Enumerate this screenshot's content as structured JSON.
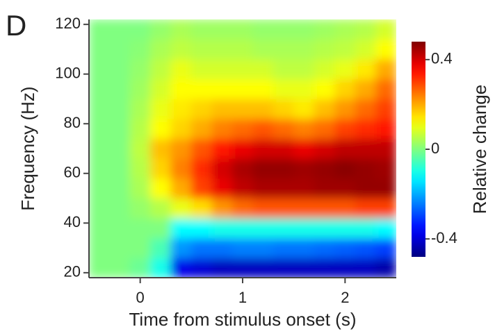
{
  "chart_data": {
    "type": "heatmap",
    "panel_label": "D",
    "xlabel": "Time from stimulus onset (s)",
    "ylabel": "Frequency (Hz)",
    "colorbar_label": "Relative change",
    "colormap": "jet",
    "x_edges": [
      -0.5,
      -0.3,
      -0.1,
      0.1,
      0.3,
      0.5,
      0.7,
      0.9,
      1.1,
      1.3,
      1.5,
      1.7,
      1.9,
      2.1,
      2.3,
      2.5
    ],
    "y_edges": [
      18,
      26,
      34,
      42,
      50,
      58,
      66,
      74,
      82,
      90,
      98,
      106,
      114,
      122
    ],
    "values": [
      [
        0,
        0,
        -0.02,
        -0.1,
        -0.38,
        -0.4,
        -0.42,
        -0.42,
        -0.42,
        -0.42,
        -0.42,
        -0.42,
        -0.42,
        -0.42,
        -0.44
      ],
      [
        0,
        0,
        0,
        -0.05,
        -0.22,
        -0.25,
        -0.25,
        -0.24,
        -0.24,
        -0.25,
        -0.25,
        -0.26,
        -0.27,
        -0.28,
        -0.3
      ],
      [
        0,
        0,
        0,
        0,
        -0.12,
        -0.12,
        -0.1,
        -0.1,
        -0.1,
        -0.1,
        -0.1,
        -0.1,
        -0.1,
        -0.1,
        -0.12
      ],
      [
        0,
        0,
        0.02,
        0.05,
        0.1,
        0.15,
        0.22,
        0.26,
        0.28,
        0.28,
        0.28,
        0.28,
        0.28,
        0.3,
        0.3
      ],
      [
        0,
        0,
        0.04,
        0.12,
        0.2,
        0.3,
        0.38,
        0.42,
        0.44,
        0.44,
        0.44,
        0.45,
        0.45,
        0.46,
        0.46
      ],
      [
        0,
        0,
        0.05,
        0.16,
        0.24,
        0.32,
        0.4,
        0.44,
        0.46,
        0.46,
        0.45,
        0.46,
        0.47,
        0.46,
        0.45
      ],
      [
        0,
        0,
        0.06,
        0.18,
        0.22,
        0.28,
        0.34,
        0.38,
        0.4,
        0.4,
        0.38,
        0.4,
        0.42,
        0.42,
        0.42
      ],
      [
        0,
        0,
        0.05,
        0.12,
        0.16,
        0.2,
        0.24,
        0.26,
        0.28,
        0.26,
        0.24,
        0.26,
        0.3,
        0.32,
        0.34
      ],
      [
        0,
        0,
        0.04,
        0.1,
        0.14,
        0.16,
        0.18,
        0.18,
        0.18,
        0.16,
        0.14,
        0.18,
        0.22,
        0.26,
        0.3
      ],
      [
        0,
        0,
        0.03,
        0.08,
        0.12,
        0.12,
        0.12,
        0.12,
        0.12,
        0.1,
        0.1,
        0.12,
        0.16,
        0.2,
        0.26
      ],
      [
        0,
        0,
        0.02,
        0.06,
        0.1,
        0.08,
        0.08,
        0.08,
        0.08,
        0.06,
        0.06,
        0.08,
        0.1,
        0.14,
        0.2
      ],
      [
        0,
        0,
        0.01,
        0.04,
        0.06,
        0.05,
        0.05,
        0.05,
        0.04,
        0.04,
        0.04,
        0.05,
        0.06,
        0.08,
        0.12
      ],
      [
        0,
        0,
        0,
        0.02,
        0.04,
        0.03,
        0.03,
        0.03,
        0.02,
        0.02,
        0.02,
        0.03,
        0.04,
        0.05,
        0.08
      ]
    ],
    "xlim": [
      -0.5,
      2.5
    ],
    "ylim": [
      18,
      122
    ],
    "xticks": [
      0,
      1,
      2
    ],
    "yticks": [
      20,
      40,
      60,
      80,
      100,
      120
    ],
    "zlim": [
      -0.48,
      0.48
    ],
    "zticks": [
      -0.4,
      0,
      0.4
    ]
  }
}
